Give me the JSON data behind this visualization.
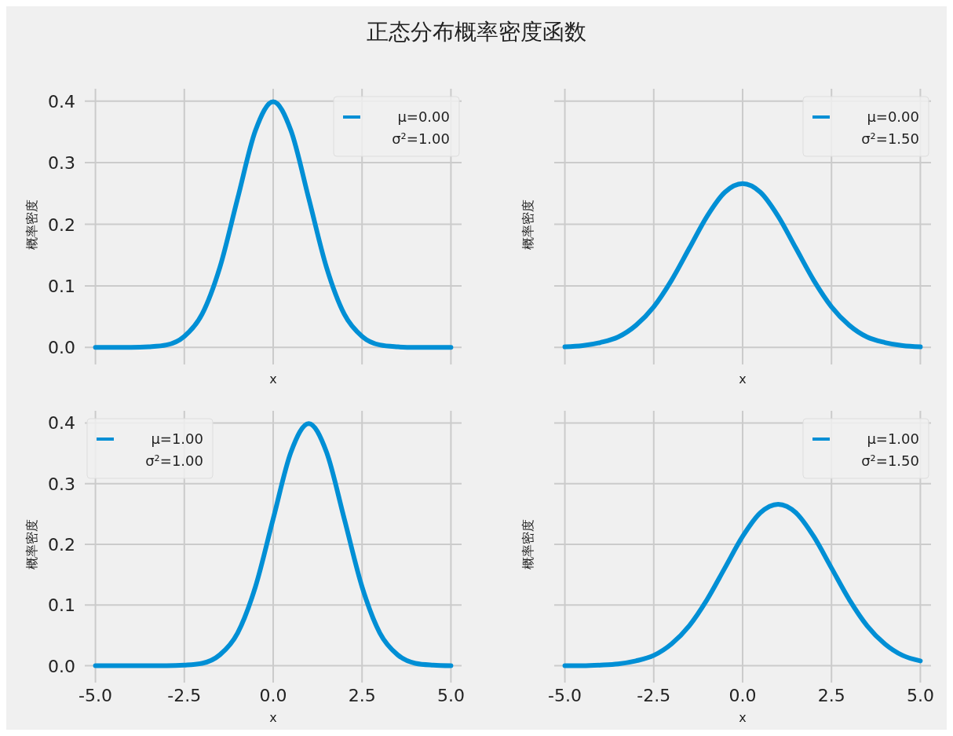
{
  "chart_data": [
    {
      "type": "line",
      "title": "正态分布概率密度函数",
      "xlabel": "x",
      "ylabel": "概率密度",
      "x": [
        -5,
        -4.5,
        -4,
        -3.5,
        -3,
        -2.5,
        -2,
        -1.5,
        -1,
        -0.5,
        0,
        0.5,
        1,
        1.5,
        2,
        2.5,
        3,
        3.5,
        4,
        4.5,
        5
      ],
      "series": [
        {
          "name": "μ=0.00\nσ²=1.00",
          "color": "#008fd5",
          "values": [
            0,
            0,
            0,
            0.001,
            0.004,
            0.018,
            0.054,
            0.13,
            0.242,
            0.352,
            0.399,
            0.352,
            0.242,
            0.13,
            0.054,
            0.018,
            0.004,
            0.001,
            0,
            0,
            0
          ]
        }
      ],
      "xlim": [
        -5.3,
        5.3
      ],
      "ylim": [
        -0.02,
        0.42
      ],
      "xticks": [
        -5,
        -2.5,
        0,
        2.5,
        5
      ],
      "yticks": [
        {
          "value": 0,
          "label": "0.0"
        },
        0.1,
        0.2,
        0.3,
        0.4
      ],
      "grid": true,
      "legend": "top right",
      "tick_labels": "y"
    },
    {
      "type": "line",
      "xlabel": "x",
      "ylabel": "概率密度",
      "x": [
        -5,
        -4.5,
        -4,
        -3.5,
        -3,
        -2.5,
        -2,
        -1.5,
        -1,
        -0.5,
        0,
        0.5,
        1,
        1.5,
        2,
        2.5,
        3,
        3.5,
        4,
        4.5,
        5
      ],
      "series": [
        {
          "name": "μ=0.00\nσ²=1.50",
          "color": "#008fd5",
          "values": [
            0.001,
            0.003,
            0.008,
            0.017,
            0.036,
            0.066,
            0.109,
            0.161,
            0.213,
            0.252,
            0.266,
            0.252,
            0.213,
            0.161,
            0.109,
            0.066,
            0.036,
            0.017,
            0.008,
            0.003,
            0.001
          ]
        }
      ],
      "xlim": [
        -5.3,
        5.3
      ],
      "ylim": [
        -0.02,
        0.42
      ],
      "xticks": [
        -5,
        -2.5,
        0,
        2.5,
        5
      ],
      "yticks": [
        0,
        0.1,
        0.2,
        0.3,
        0.4
      ],
      "grid": true,
      "legend": "top right",
      "tick_labels": false
    },
    {
      "type": "line",
      "xlabel": "x",
      "ylabel": "概率密度",
      "x": [
        -5,
        -4.5,
        -4,
        -3.5,
        -3,
        -2.5,
        -2,
        -1.5,
        -1,
        -0.5,
        0,
        0.5,
        1,
        1.5,
        2,
        2.5,
        3,
        3.5,
        4,
        4.5,
        5
      ],
      "series": [
        {
          "name": "μ=1.00\nσ²=1.00",
          "color": "#008fd5",
          "values": [
            0,
            0,
            0,
            0,
            0,
            0.001,
            0.004,
            0.018,
            0.054,
            0.13,
            0.242,
            0.352,
            0.399,
            0.352,
            0.242,
            0.13,
            0.054,
            0.018,
            0.004,
            0.001,
            0
          ]
        }
      ],
      "xlim": [
        -5.3,
        5.3
      ],
      "ylim": [
        -0.02,
        0.42
      ],
      "xticks": [
        {
          "value": -5,
          "label": "-5.0"
        },
        {
          "value": -2.5,
          "label": "-2.5"
        },
        {
          "value": 0,
          "label": "0.0"
        },
        {
          "value": 2.5,
          "label": "2.5"
        },
        {
          "value": 5,
          "label": "5.0"
        }
      ],
      "yticks": [
        {
          "value": 0,
          "label": "0.0"
        },
        0.1,
        0.2,
        0.3,
        0.4
      ],
      "grid": true,
      "legend": "top left"
    },
    {
      "type": "line",
      "xlabel": "x",
      "ylabel": "概率密度",
      "x": [
        -5,
        -4.5,
        -4,
        -3.5,
        -3,
        -2.5,
        -2,
        -1.5,
        -1,
        -0.5,
        0,
        0.5,
        1,
        1.5,
        2,
        2.5,
        3,
        3.5,
        4,
        4.5,
        5
      ],
      "series": [
        {
          "name": "μ=1.00\nσ²=1.50",
          "color": "#008fd5",
          "values": [
            0,
            0,
            0.001,
            0.003,
            0.008,
            0.017,
            0.036,
            0.066,
            0.109,
            0.161,
            0.213,
            0.252,
            0.266,
            0.252,
            0.213,
            0.161,
            0.109,
            0.066,
            0.036,
            0.017,
            0.008
          ]
        }
      ],
      "xlim": [
        -5.3,
        5.3
      ],
      "ylim": [
        -0.02,
        0.42
      ],
      "xticks": [
        {
          "value": -5,
          "label": "-5.0"
        },
        {
          "value": -2.5,
          "label": "-2.5"
        },
        {
          "value": 0,
          "label": "0.0"
        },
        {
          "value": 2.5,
          "label": "2.5"
        },
        {
          "value": 5,
          "label": "5.0"
        }
      ],
      "yticks": [
        0,
        0.1,
        0.2,
        0.3,
        0.4
      ],
      "grid": true,
      "legend": "top right",
      "tick_labels": "x"
    }
  ]
}
